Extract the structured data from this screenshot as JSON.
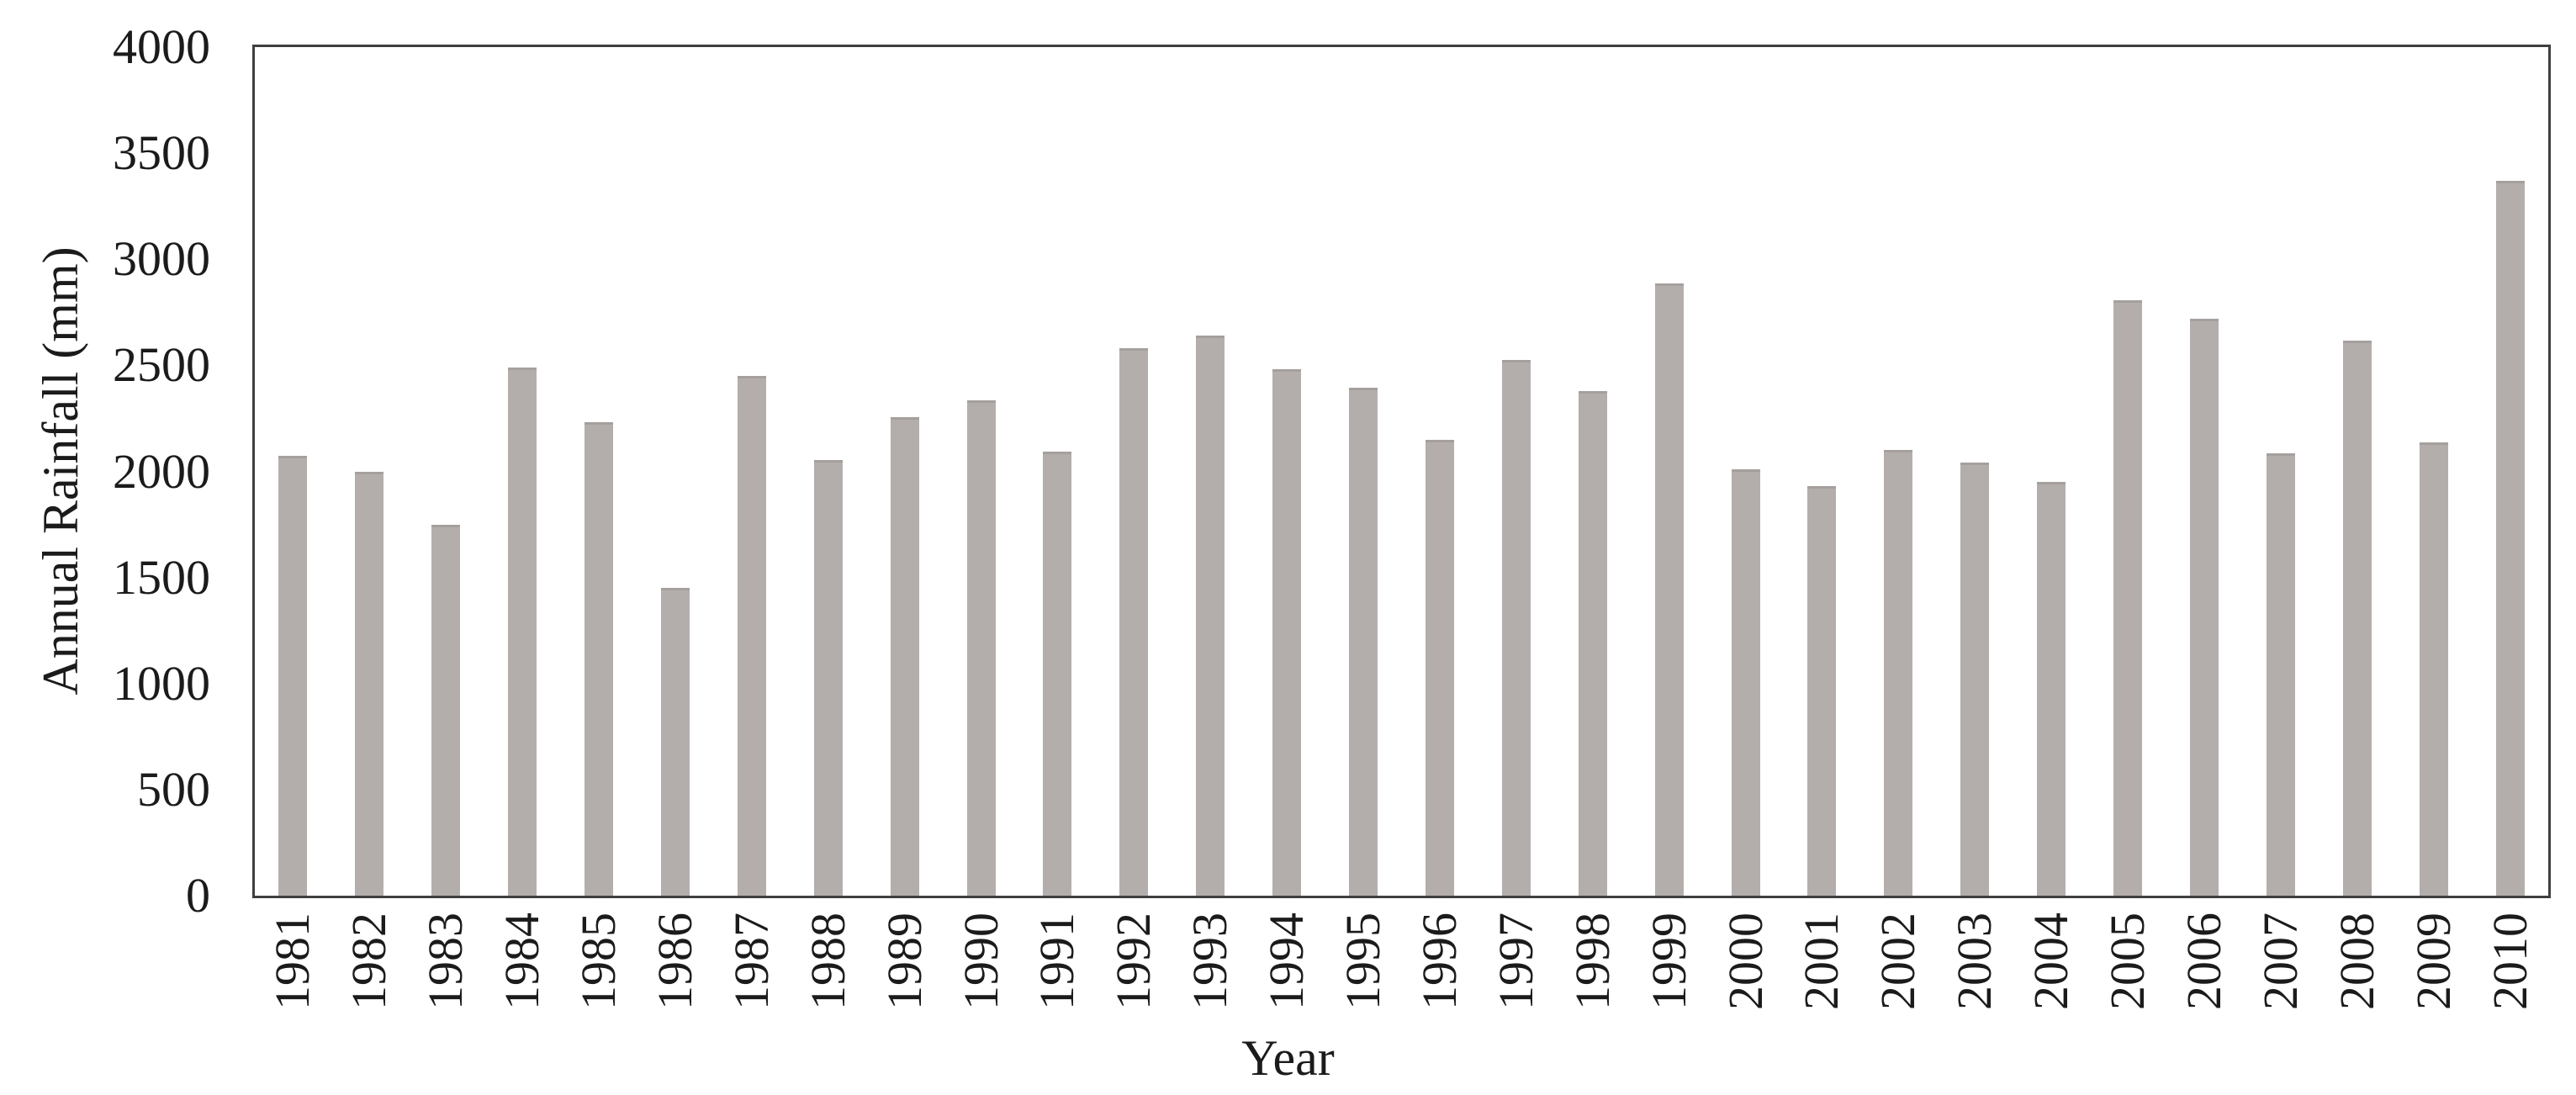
{
  "chart_data": {
    "type": "bar",
    "title": "",
    "xlabel": "Year",
    "ylabel": "Annual Rainfall (mm)",
    "categories": [
      "1981",
      "1982",
      "1983",
      "1984",
      "1985",
      "1986",
      "1987",
      "1988",
      "1989",
      "1990",
      "1991",
      "1992",
      "1993",
      "1994",
      "1995",
      "1996",
      "1997",
      "1998",
      "1999",
      "2000",
      "2001",
      "2002",
      "2003",
      "2004",
      "2005",
      "2006",
      "2007",
      "2008",
      "2009",
      "2010"
    ],
    "values": [
      2075,
      2000,
      1750,
      2490,
      2230,
      1450,
      2450,
      2055,
      2255,
      2335,
      2095,
      2580,
      2640,
      2480,
      2395,
      2150,
      2525,
      2380,
      2885,
      2010,
      1930,
      2100,
      2040,
      1950,
      2805,
      2720,
      2085,
      2615,
      2135,
      3370
    ],
    "ylim": [
      0,
      4000
    ],
    "ytick_step": 500,
    "yticks": [
      0,
      500,
      1000,
      1500,
      2000,
      2500,
      3000,
      3500,
      4000
    ],
    "grid": false,
    "legend": "none",
    "bar_color": "#b3aeac",
    "bar_edge_color": "#a5a09e",
    "axis_color": "#3f3f3f",
    "background_color": "#ffffff"
  }
}
